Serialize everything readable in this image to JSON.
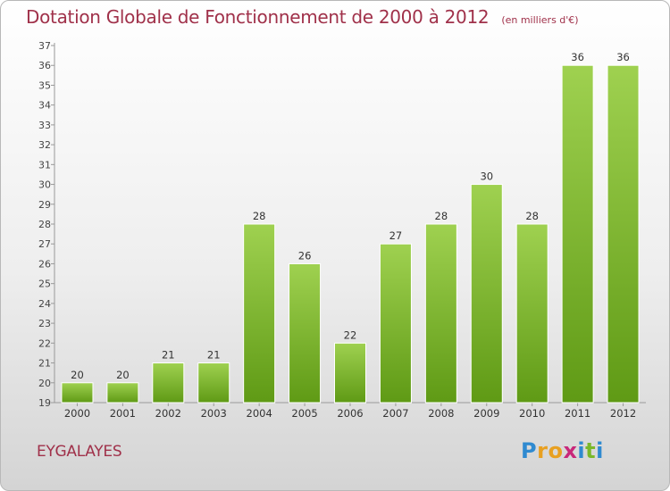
{
  "title": "Dotation Globale de Fonctionnement de 2000 à 2012",
  "unit": "(en milliers d'€)",
  "place": "EYGALAYES",
  "logo": {
    "letters": [
      "P",
      "r",
      "o",
      "x",
      "i",
      "t",
      "i"
    ],
    "colors": [
      "#2f8ad0",
      "#e8a021",
      "#e8a021",
      "#c8287a",
      "#2f8ad0",
      "#7ab82a",
      "#2f8ad0"
    ]
  },
  "chart_data": {
    "type": "bar",
    "title": "Dotation Globale de Fonctionnement de 2000 à 2012",
    "ylabel": "",
    "xlabel": "",
    "categories": [
      "2000",
      "2001",
      "2002",
      "2003",
      "2004",
      "2005",
      "2006",
      "2007",
      "2008",
      "2009",
      "2010",
      "2011",
      "2012"
    ],
    "values": [
      20,
      20,
      21,
      21,
      28,
      26,
      22,
      27,
      28,
      30,
      28,
      36,
      36
    ],
    "ylim": [
      19,
      37
    ],
    "yticks": [
      19,
      20,
      21,
      22,
      23,
      24,
      25,
      26,
      27,
      28,
      29,
      30,
      31,
      32,
      33,
      34,
      35,
      36,
      37
    ],
    "grid": false,
    "bar_color": "#7cb82f"
  }
}
